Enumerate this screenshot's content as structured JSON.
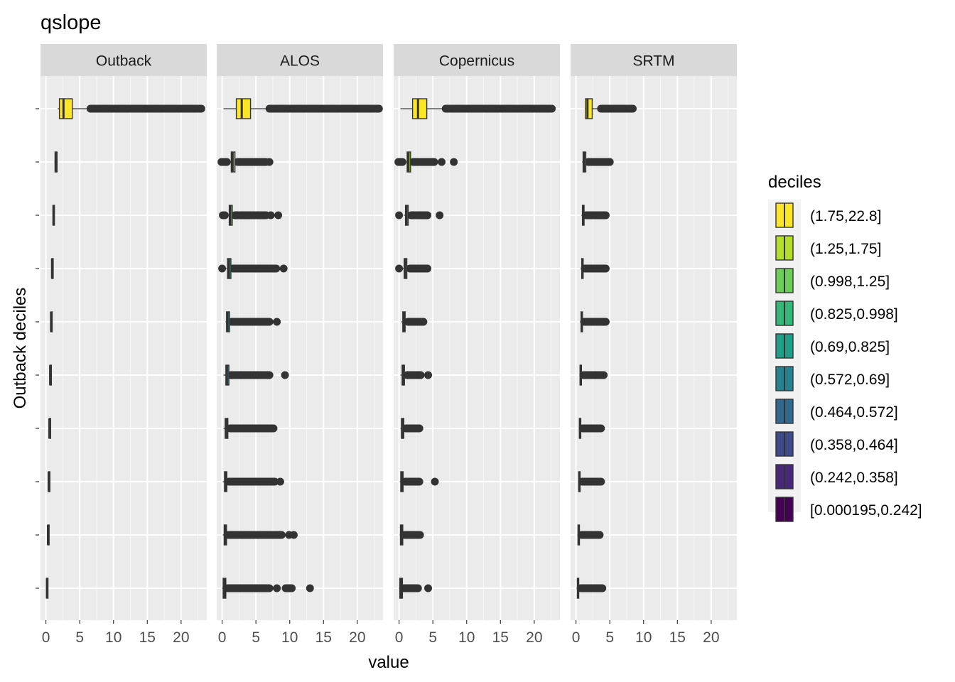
{
  "chart_data": {
    "type": "boxplot",
    "title": "qslope",
    "xlabel": "value",
    "ylabel": "Outback deciles",
    "xlim": [
      -0.8,
      23.8
    ],
    "x_ticks": [
      0,
      5,
      10,
      15,
      20
    ],
    "x_tick_labels": [
      "0",
      "5",
      "10",
      "15",
      "20"
    ],
    "facets": [
      "Outback",
      "ALOS",
      "Copernicus",
      "SRTM"
    ],
    "legend": {
      "title": "deciles",
      "position": "right",
      "entries": [
        {
          "label": "(1.75,22.8]",
          "color": "#FDE725"
        },
        {
          "label": "(1.25,1.75]",
          "color": "#B4DE2C"
        },
        {
          "label": "(0.998,1.25]",
          "color": "#6DCD59"
        },
        {
          "label": "(0.825,0.998]",
          "color": "#35B779"
        },
        {
          "label": "(0.69,0.825]",
          "color": "#1F9E89"
        },
        {
          "label": "(0.572,0.69]",
          "color": "#26828E"
        },
        {
          "label": "(0.464,0.572]",
          "color": "#31688E"
        },
        {
          "label": "(0.358,0.464]",
          "color": "#3E4A89"
        },
        {
          "label": "(0.242,0.358]",
          "color": "#482878"
        },
        {
          "label": "[0.000195,0.242]",
          "color": "#440154"
        }
      ]
    },
    "panels": [
      {
        "facet": "Outback",
        "boxes": [
          {
            "decile": "(1.75,22.8]",
            "whisker_low": 1.75,
            "q1": 2.0,
            "median": 2.6,
            "q3": 3.9,
            "whisker_high": 6.6,
            "outlier_ranges": [
              [
                6.6,
                23.0
              ]
            ],
            "outlier_points": []
          },
          {
            "decile": "(1.25,1.75]",
            "whisker_low": 1.25,
            "q1": 1.35,
            "median": 1.5,
            "q3": 1.65,
            "whisker_high": 1.75,
            "outlier_ranges": [],
            "outlier_points": []
          },
          {
            "decile": "(0.998,1.25]",
            "whisker_low": 1.0,
            "q1": 1.05,
            "median": 1.12,
            "q3": 1.2,
            "whisker_high": 1.25,
            "outlier_ranges": [],
            "outlier_points": []
          },
          {
            "decile": "(0.825,0.998]",
            "whisker_low": 0.83,
            "q1": 0.87,
            "median": 0.91,
            "q3": 0.96,
            "whisker_high": 1.0,
            "outlier_ranges": [],
            "outlier_points": []
          },
          {
            "decile": "(0.69,0.825]",
            "whisker_low": 0.69,
            "q1": 0.72,
            "median": 0.76,
            "q3": 0.79,
            "whisker_high": 0.82,
            "outlier_ranges": [],
            "outlier_points": []
          },
          {
            "decile": "(0.572,0.69]",
            "whisker_low": 0.57,
            "q1": 0.6,
            "median": 0.63,
            "q3": 0.66,
            "whisker_high": 0.69,
            "outlier_ranges": [],
            "outlier_points": []
          },
          {
            "decile": "(0.464,0.572]",
            "whisker_low": 0.46,
            "q1": 0.49,
            "median": 0.52,
            "q3": 0.54,
            "whisker_high": 0.57,
            "outlier_ranges": [],
            "outlier_points": []
          },
          {
            "decile": "(0.358,0.464]",
            "whisker_low": 0.36,
            "q1": 0.38,
            "median": 0.41,
            "q3": 0.44,
            "whisker_high": 0.46,
            "outlier_ranges": [],
            "outlier_points": []
          },
          {
            "decile": "(0.242,0.358]",
            "whisker_low": 0.24,
            "q1": 0.27,
            "median": 0.3,
            "q3": 0.33,
            "whisker_high": 0.36,
            "outlier_ranges": [],
            "outlier_points": []
          },
          {
            "decile": "[0.000195,0.242]",
            "whisker_low": 0.0,
            "q1": 0.1,
            "median": 0.15,
            "q3": 0.2,
            "whisker_high": 0.24,
            "outlier_ranges": [],
            "outlier_points": []
          }
        ]
      },
      {
        "facet": "ALOS",
        "boxes": [
          {
            "decile": "(1.75,22.8]",
            "whisker_low": 0.2,
            "q1": 2.1,
            "median": 2.9,
            "q3": 4.2,
            "whisker_high": 7.0,
            "outlier_ranges": [
              [
                7.0,
                23.2
              ]
            ],
            "outlier_points": []
          },
          {
            "decile": "(1.25,1.75]",
            "whisker_low": 1.0,
            "q1": 1.35,
            "median": 1.55,
            "q3": 1.9,
            "whisker_high": 2.2,
            "outlier_ranges": [
              [
                2.3,
                6.5
              ],
              [
                -0.1,
                0.7
              ]
            ],
            "outlier_points": [
              7.0
            ]
          },
          {
            "decile": "(0.998,1.25]",
            "whisker_low": 0.7,
            "q1": 1.05,
            "median": 1.2,
            "q3": 1.5,
            "whisker_high": 1.9,
            "outlier_ranges": [
              [
                1.9,
                6.5
              ],
              [
                0.1,
                0.4
              ]
            ],
            "outlier_points": [
              7.2,
              8.3
            ]
          },
          {
            "decile": "(0.825,0.998]",
            "whisker_low": 0.6,
            "q1": 0.8,
            "median": 1.0,
            "q3": 1.3,
            "whisker_high": 1.6,
            "outlier_ranges": [
              [
                1.6,
                8.0
              ]
            ],
            "outlier_points": [
              0.0,
              9.1
            ]
          },
          {
            "decile": "(0.69,0.825]",
            "whisker_low": 0.5,
            "q1": 0.65,
            "median": 0.8,
            "q3": 1.1,
            "whisker_high": 1.4,
            "outlier_ranges": [
              [
                1.4,
                7.0
              ]
            ],
            "outlier_points": [
              8.1
            ]
          },
          {
            "decile": "(0.572,0.69]",
            "whisker_low": 0.2,
            "q1": 0.55,
            "median": 0.7,
            "q3": 1.0,
            "whisker_high": 1.3,
            "outlier_ranges": [
              [
                1.3,
                7.0
              ]
            ],
            "outlier_points": [
              9.3
            ]
          },
          {
            "decile": "(0.464,0.572]",
            "whisker_low": 0.2,
            "q1": 0.45,
            "median": 0.6,
            "q3": 0.85,
            "whisker_high": 1.2,
            "outlier_ranges": [
              [
                1.2,
                7.6
              ]
            ],
            "outlier_points": []
          },
          {
            "decile": "(0.358,0.464]",
            "whisker_low": 0.1,
            "q1": 0.35,
            "median": 0.5,
            "q3": 0.7,
            "whisker_high": 1.0,
            "outlier_ranges": [
              [
                1.0,
                7.8
              ]
            ],
            "outlier_points": [
              8.6
            ]
          },
          {
            "decile": "(0.242,0.358]",
            "whisker_low": 0.1,
            "q1": 0.3,
            "median": 0.45,
            "q3": 0.65,
            "whisker_high": 0.9,
            "outlier_ranges": [
              [
                0.9,
                8.8
              ]
            ],
            "outlier_points": [
              9.9,
              10.6
            ]
          },
          {
            "decile": "[0.000195,0.242]",
            "whisker_low": 0.0,
            "q1": 0.15,
            "median": 0.3,
            "q3": 0.55,
            "whisker_high": 0.8,
            "outlier_ranges": [
              [
                0.8,
                7.0
              ],
              [
                9.4,
                10.3
              ]
            ],
            "outlier_points": [
              8.1,
              13.0
            ]
          }
        ]
      },
      {
        "facet": "Copernicus",
        "boxes": [
          {
            "decile": "(1.75,22.8]",
            "whisker_low": 0.2,
            "q1": 2.0,
            "median": 2.8,
            "q3": 4.1,
            "whisker_high": 6.9,
            "outlier_ranges": [
              [
                6.9,
                22.6
              ]
            ],
            "outlier_points": []
          },
          {
            "decile": "(1.25,1.75]",
            "whisker_low": 0.8,
            "q1": 1.2,
            "median": 1.4,
            "q3": 1.7,
            "whisker_high": 2.1,
            "outlier_ranges": [
              [
                2.1,
                5.2
              ],
              [
                -0.1,
                0.5
              ]
            ],
            "outlier_points": [
              6.3,
              8.1
            ]
          },
          {
            "decile": "(0.998,1.25]",
            "whisker_low": 0.7,
            "q1": 0.95,
            "median": 1.1,
            "q3": 1.35,
            "whisker_high": 1.8,
            "outlier_ranges": [
              [
                1.8,
                4.2
              ]
            ],
            "outlier_points": [
              0.0,
              6.0
            ]
          },
          {
            "decile": "(0.825,0.998]",
            "whisker_low": 0.5,
            "q1": 0.75,
            "median": 0.9,
            "q3": 1.15,
            "whisker_high": 1.6,
            "outlier_ranges": [
              [
                1.6,
                4.2
              ]
            ],
            "outlier_points": [
              0.0
            ]
          },
          {
            "decile": "(0.69,0.825]",
            "whisker_low": 0.3,
            "q1": 0.55,
            "median": 0.7,
            "q3": 0.9,
            "whisker_high": 1.3,
            "outlier_ranges": [
              [
                1.3,
                3.6
              ]
            ],
            "outlier_points": []
          },
          {
            "decile": "(0.572,0.69]",
            "whisker_low": 0.2,
            "q1": 0.45,
            "median": 0.6,
            "q3": 0.8,
            "whisker_high": 1.2,
            "outlier_ranges": [
              [
                1.2,
                3.2
              ]
            ],
            "outlier_points": [
              4.3
            ]
          },
          {
            "decile": "(0.464,0.572]",
            "whisker_low": 0.2,
            "q1": 0.35,
            "median": 0.5,
            "q3": 0.7,
            "whisker_high": 1.0,
            "outlier_ranges": [
              [
                1.0,
                3.0
              ]
            ],
            "outlier_points": []
          },
          {
            "decile": "(0.358,0.464]",
            "whisker_low": 0.1,
            "q1": 0.25,
            "median": 0.4,
            "q3": 0.6,
            "whisker_high": 0.9,
            "outlier_ranges": [
              [
                0.9,
                3.0
              ]
            ],
            "outlier_points": [
              5.3
            ]
          },
          {
            "decile": "(0.242,0.358]",
            "whisker_low": 0.1,
            "q1": 0.2,
            "median": 0.35,
            "q3": 0.55,
            "whisker_high": 0.8,
            "outlier_ranges": [
              [
                0.8,
                3.1
              ]
            ],
            "outlier_points": []
          },
          {
            "decile": "[0.000195,0.242]",
            "whisker_low": 0.0,
            "q1": 0.1,
            "median": 0.25,
            "q3": 0.5,
            "whisker_high": 0.7,
            "outlier_ranges": [
              [
                0.7,
                2.8
              ]
            ],
            "outlier_points": [
              4.3
            ]
          }
        ]
      },
      {
        "facet": "SRTM",
        "boxes": [
          {
            "decile": "(1.75,22.8]",
            "whisker_low": 1.3,
            "q1": 1.4,
            "median": 1.7,
            "q3": 2.4,
            "whisker_high": 3.7,
            "outlier_ranges": [
              [
                3.7,
                8.4
              ]
            ],
            "outlier_points": []
          },
          {
            "decile": "(1.25,1.75]",
            "whisker_low": 0.9,
            "q1": 1.05,
            "median": 1.2,
            "q3": 1.45,
            "whisker_high": 1.8,
            "outlier_ranges": [
              [
                1.8,
                5.0
              ]
            ],
            "outlier_points": []
          },
          {
            "decile": "(0.998,1.25]",
            "whisker_low": 0.8,
            "q1": 0.95,
            "median": 1.05,
            "q3": 1.2,
            "whisker_high": 1.5,
            "outlier_ranges": [
              [
                1.5,
                4.4
              ]
            ],
            "outlier_points": []
          },
          {
            "decile": "(0.825,0.998]",
            "whisker_low": 0.7,
            "q1": 0.85,
            "median": 0.95,
            "q3": 1.05,
            "whisker_high": 1.3,
            "outlier_ranges": [
              [
                1.3,
                4.4
              ]
            ],
            "outlier_points": []
          },
          {
            "decile": "(0.69,0.825]",
            "whisker_low": 0.6,
            "q1": 0.75,
            "median": 0.85,
            "q3": 0.95,
            "whisker_high": 1.2,
            "outlier_ranges": [
              [
                1.2,
                4.4
              ]
            ],
            "outlier_points": []
          },
          {
            "decile": "(0.572,0.69]",
            "whisker_low": 0.5,
            "q1": 0.6,
            "median": 0.7,
            "q3": 0.8,
            "whisker_high": 1.1,
            "outlier_ranges": [
              [
                1.1,
                4.1
              ]
            ],
            "outlier_points": []
          },
          {
            "decile": "(0.464,0.572]",
            "whisker_low": 0.4,
            "q1": 0.5,
            "median": 0.6,
            "q3": 0.7,
            "whisker_high": 1.0,
            "outlier_ranges": [
              [
                1.0,
                3.7
              ]
            ],
            "outlier_points": []
          },
          {
            "decile": "(0.358,0.464]",
            "whisker_low": 0.3,
            "q1": 0.4,
            "median": 0.5,
            "q3": 0.6,
            "whisker_high": 0.9,
            "outlier_ranges": [
              [
                0.9,
                3.7
              ]
            ],
            "outlier_points": []
          },
          {
            "decile": "(0.242,0.358]",
            "whisker_low": 0.2,
            "q1": 0.3,
            "median": 0.4,
            "q3": 0.5,
            "whisker_high": 0.8,
            "outlier_ranges": [
              [
                0.8,
                3.5
              ]
            ],
            "outlier_points": []
          },
          {
            "decile": "[0.000195,0.242]",
            "whisker_low": 0.1,
            "q1": 0.2,
            "median": 0.3,
            "q3": 0.4,
            "whisker_high": 0.7,
            "outlier_ranges": [
              [
                0.7,
                3.9
              ]
            ],
            "outlier_points": []
          }
        ]
      }
    ]
  }
}
